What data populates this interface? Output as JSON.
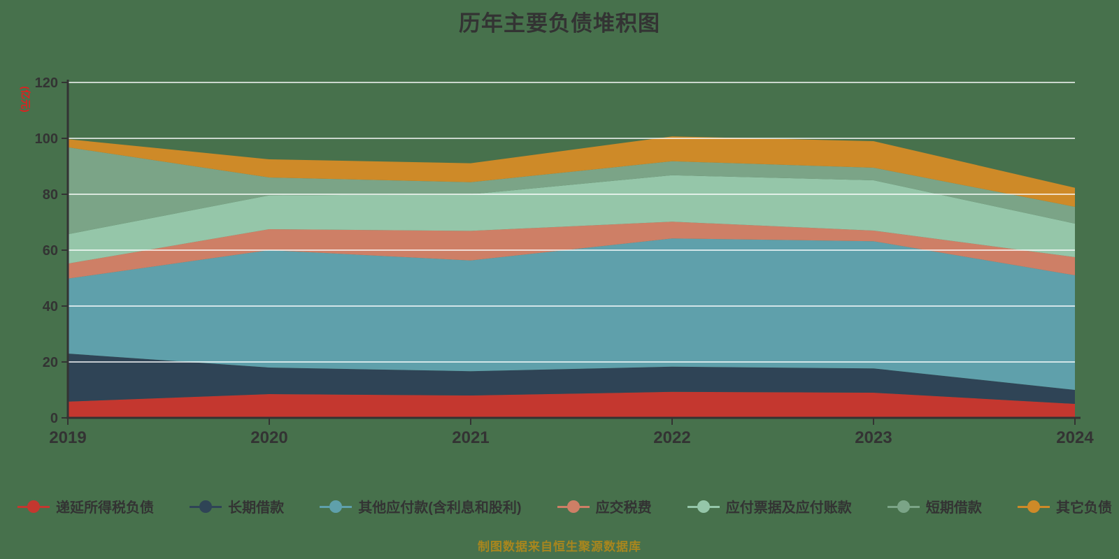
{
  "title": "历年主要负债堆积图",
  "y_axis": {
    "name": "(亿元)",
    "tick_labels": [
      "0",
      "20",
      "40",
      "60",
      "80",
      "100",
      "120"
    ]
  },
  "x_axis": {
    "labels": [
      "2019",
      "2020",
      "2021",
      "2022",
      "2023",
      "2024"
    ]
  },
  "chart_data": {
    "type": "area",
    "stacked": true,
    "title": "历年主要负债堆积图",
    "unit": "(亿元)",
    "categories": [
      2019,
      2020,
      2021,
      2022,
      2023,
      2024
    ],
    "series": [
      {
        "name": "递延所得税负债",
        "color": "#C4372F",
        "values": [
          5.8,
          8.5,
          8.0,
          9.3,
          9.0,
          5.0
        ]
      },
      {
        "name": "长期借款",
        "color": "#2F4456",
        "values": [
          17.2,
          9.5,
          8.7,
          9.0,
          8.7,
          5.0
        ]
      },
      {
        "name": "其他应付款(含利息和股利)",
        "color": "#5FA0AB",
        "values": [
          26.8,
          42.0,
          39.6,
          45.9,
          45.5,
          41.0
        ]
      },
      {
        "name": "应交税费",
        "color": "#CE7F66",
        "values": [
          5.4,
          7.5,
          10.6,
          6.0,
          3.8,
          6.5
        ]
      },
      {
        "name": "应付票据及应付账款",
        "color": "#95C6A9",
        "values": [
          10.5,
          12.1,
          13.1,
          16.6,
          18.0,
          12.0
        ]
      },
      {
        "name": "短期借款",
        "color": "#7BA487",
        "values": [
          31.1,
          6.4,
          4.3,
          5.0,
          4.5,
          6.0
        ]
      },
      {
        "name": "其它负债",
        "color": "#CE8A28",
        "values": [
          2.9,
          6.5,
          6.8,
          8.9,
          9.5,
          6.8
        ]
      }
    ],
    "ylim": [
      0,
      120
    ],
    "ytick_step": 20,
    "grid": true,
    "legend_position": "bottom"
  },
  "footer": {
    "caption": "制图数据来自恒生聚源数据库"
  },
  "colors": {
    "background": "#47714C",
    "gridline": "rgba(255,255,255,0.72)",
    "axis": "#333333",
    "text": "#333333",
    "y_axis_name": "#E02020",
    "caption": "#A8861E"
  }
}
